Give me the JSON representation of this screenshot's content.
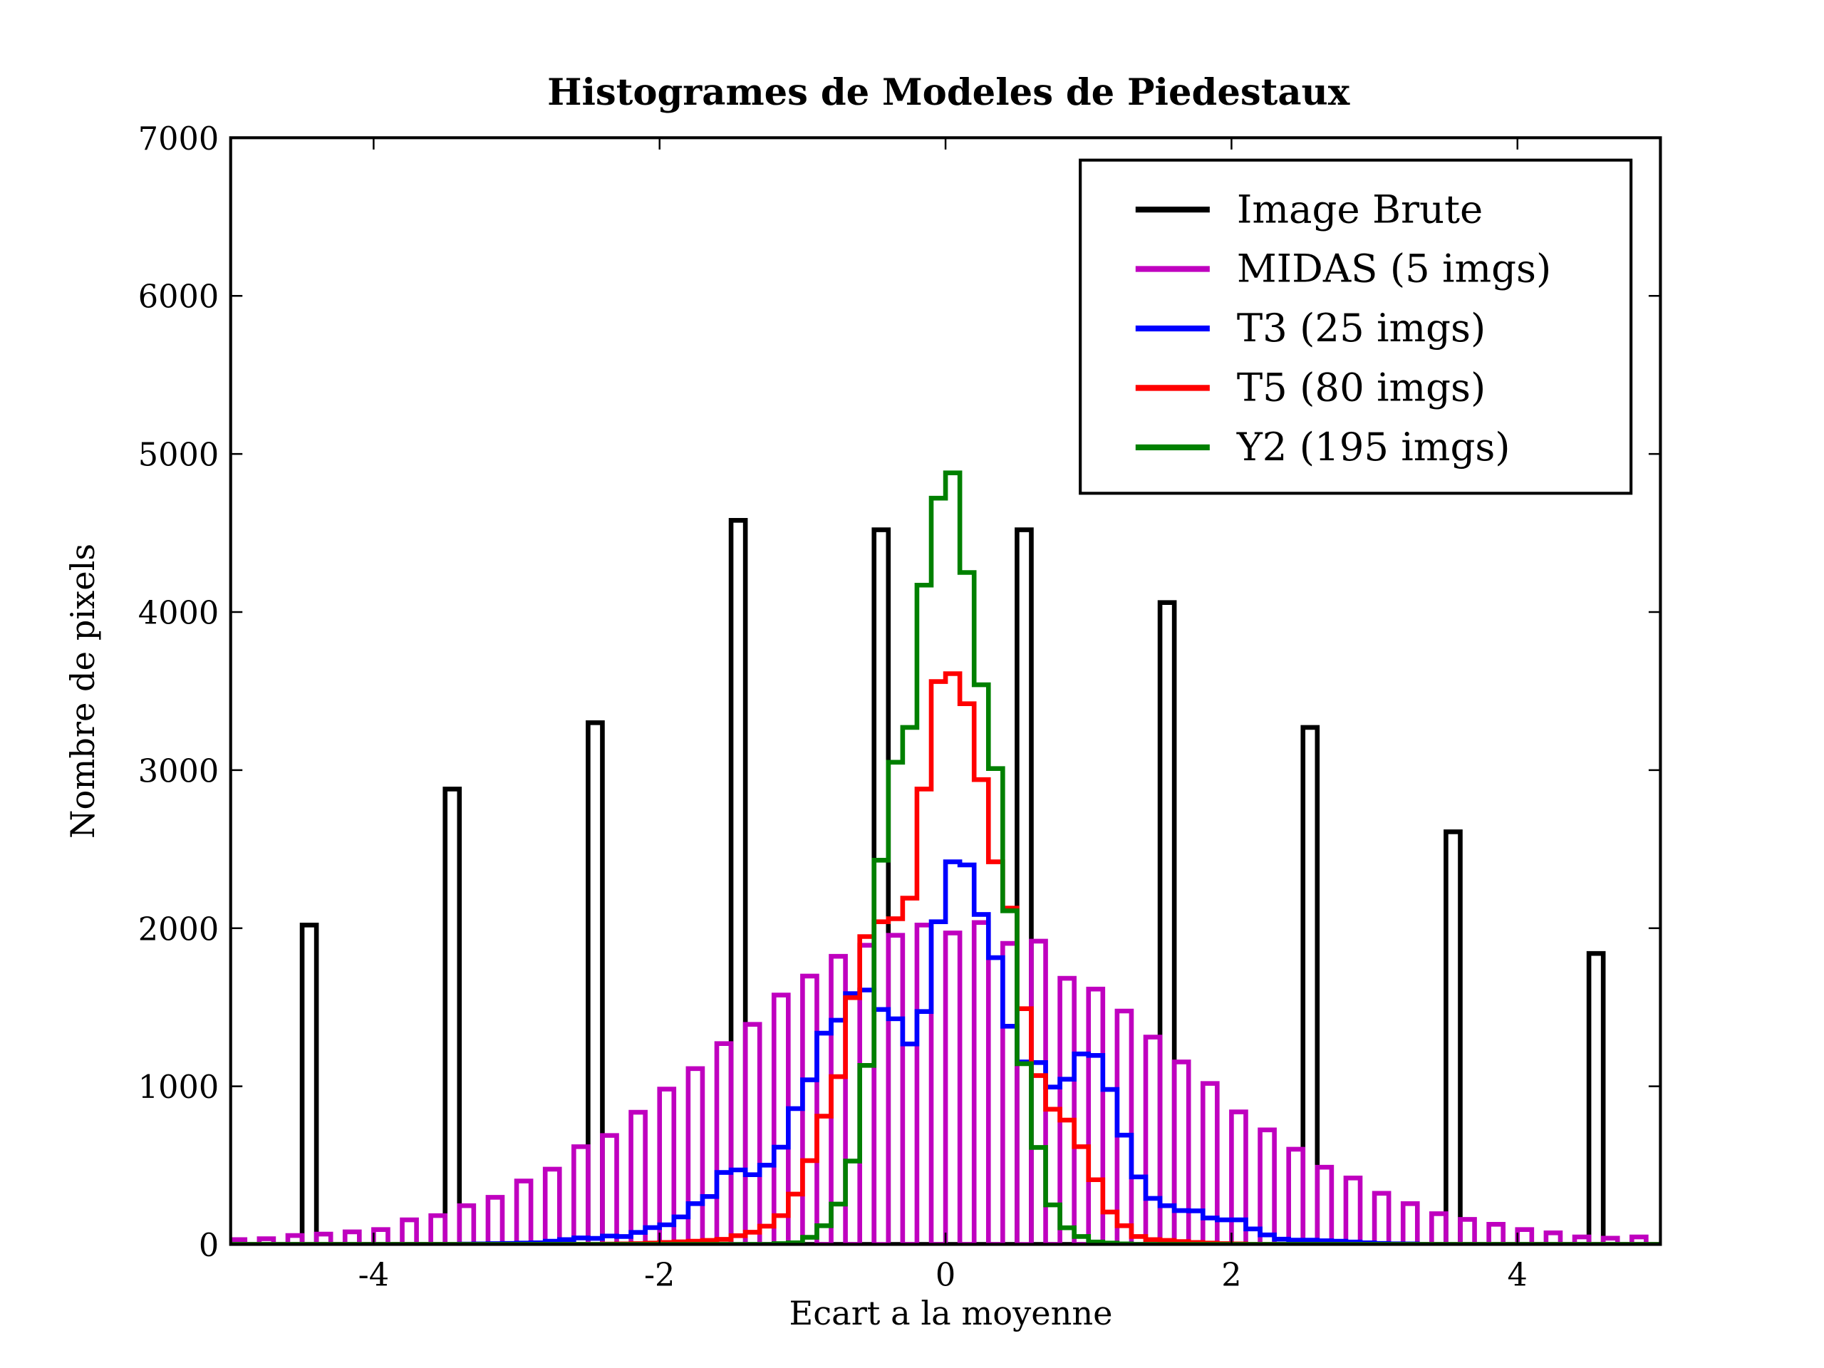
{
  "chart_data": {
    "type": "histogram-step",
    "title": "Histogrames de Modeles de Piedestaux",
    "xlabel": "Ecart a la moyenne",
    "ylabel": "Nombre de pixels",
    "xlim": [
      -5,
      5
    ],
    "ylim": [
      0,
      7000
    ],
    "x_ticks": [
      "-4",
      "-2",
      "0",
      "2",
      "4"
    ],
    "y_ticks": [
      "0",
      "1000",
      "2000",
      "3000",
      "4000",
      "5000",
      "6000",
      "7000"
    ],
    "grid": false,
    "legend_position": "top-right",
    "bin_range": [
      -5,
      5
    ],
    "bin_width": 0.1,
    "series": [
      {
        "name": "Image Brute",
        "color": "#000000",
        "counts": [
          0,
          0,
          0,
          0,
          0,
          2020,
          0,
          0,
          0,
          0,
          0,
          0,
          0,
          0,
          0,
          2880,
          0,
          0,
          0,
          0,
          0,
          0,
          0,
          0,
          0,
          3300,
          0,
          0,
          0,
          0,
          0,
          0,
          0,
          0,
          0,
          4580,
          0,
          0,
          0,
          0,
          0,
          0,
          0,
          0,
          0,
          4520,
          0,
          0,
          0,
          0,
          0,
          0,
          0,
          0,
          0,
          4520,
          0,
          0,
          0,
          0,
          0,
          0,
          0,
          0,
          0,
          4060,
          0,
          0,
          0,
          0,
          0,
          0,
          0,
          0,
          0,
          3270,
          0,
          0,
          0,
          0,
          0,
          0,
          0,
          0,
          0,
          2610,
          0,
          0,
          0,
          0,
          0,
          0,
          0,
          0,
          0,
          1840,
          0,
          0,
          0,
          0
        ]
      },
      {
        "name": "MIDAS (5 imgs)",
        "color": "#bf00bf",
        "counts": [
          30,
          0,
          36,
          0,
          56,
          0,
          65,
          0,
          79,
          0,
          94,
          0,
          155,
          0,
          182,
          0,
          245,
          0,
          298,
          0,
          401,
          0,
          476,
          0,
          618,
          0,
          689,
          0,
          836,
          0,
          982,
          0,
          1112,
          0,
          1270,
          0,
          1392,
          0,
          1577,
          0,
          1697,
          0,
          1822,
          0,
          1892,
          0,
          1955,
          0,
          2020,
          0,
          1970,
          0,
          2036,
          0,
          1904,
          0,
          1918,
          0,
          1683,
          0,
          1615,
          0,
          1476,
          0,
          1311,
          0,
          1154,
          0,
          1018,
          0,
          838,
          0,
          724,
          0,
          602,
          0,
          488,
          0,
          420,
          0,
          323,
          0,
          258,
          0,
          194,
          0,
          158,
          0,
          127,
          0,
          94,
          0,
          73,
          0,
          47,
          0,
          39,
          0,
          47,
          0
        ]
      },
      {
        "name": "T3 (25 imgs)",
        "color": "#0000ff",
        "counts": [
          0,
          0,
          0,
          0,
          0,
          0,
          0,
          0,
          0,
          0,
          0,
          0,
          0,
          0,
          0,
          0,
          2,
          3,
          5,
          6,
          8,
          10,
          20,
          30,
          41,
          38,
          53,
          50,
          76,
          106,
          124,
          174,
          258,
          303,
          455,
          471,
          441,
          501,
          615,
          859,
          1041,
          1336,
          1418,
          1586,
          1609,
          1486,
          1427,
          1268,
          1473,
          2041,
          2420,
          2400,
          2087,
          1814,
          1380,
          1154,
          1150,
          995,
          1045,
          1205,
          1195,
          980,
          691,
          427,
          291,
          245,
          214,
          212,
          167,
          155,
          155,
          98,
          60,
          33,
          27,
          27,
          23,
          20,
          15,
          10,
          6,
          4,
          3,
          0,
          0,
          0,
          0,
          0,
          0,
          0,
          0,
          0,
          0,
          0,
          0,
          0,
          0,
          0,
          0,
          0
        ]
      },
      {
        "name": "T5 (80 imgs)",
        "color": "#ff0000",
        "counts": [
          0,
          0,
          0,
          0,
          0,
          0,
          0,
          0,
          0,
          0,
          0,
          0,
          0,
          0,
          0,
          0,
          0,
          0,
          0,
          0,
          0,
          0,
          0,
          0,
          0,
          0,
          2,
          3,
          5,
          8,
          12,
          16,
          20,
          25,
          32,
          55,
          77,
          115,
          182,
          318,
          530,
          811,
          1061,
          1561,
          1947,
          2041,
          2060,
          2190,
          2880,
          3560,
          3610,
          3420,
          2940,
          2420,
          2127,
          1491,
          1068,
          855,
          786,
          618,
          409,
          205,
          118,
          50,
          30,
          25,
          18,
          12,
          8,
          5,
          3,
          0,
          0,
          0,
          0,
          0,
          0,
          0,
          0,
          0,
          0,
          0,
          0,
          0,
          0,
          0,
          0,
          0,
          0,
          0,
          0,
          0,
          0,
          0,
          0,
          0,
          0,
          0,
          0,
          0
        ]
      },
      {
        "name": "Y2 (195 imgs)",
        "color": "#008000",
        "counts": [
          0,
          0,
          0,
          0,
          0,
          0,
          0,
          0,
          0,
          0,
          0,
          0,
          0,
          0,
          0,
          0,
          0,
          0,
          0,
          0,
          0,
          0,
          0,
          0,
          0,
          0,
          0,
          0,
          0,
          0,
          0,
          0,
          0,
          0,
          0,
          0,
          0,
          0,
          5,
          10,
          45,
          118,
          255,
          527,
          1132,
          2430,
          3050,
          3270,
          4170,
          4720,
          4880,
          4250,
          3540,
          3010,
          2110,
          1143,
          613,
          250,
          105,
          50,
          15,
          8,
          3,
          0,
          0,
          0,
          0,
          0,
          0,
          0,
          0,
          0,
          0,
          0,
          0,
          0,
          0,
          0,
          0,
          0,
          0,
          0,
          0,
          0,
          0,
          0,
          0,
          0,
          0,
          0,
          0,
          0,
          0,
          0,
          0,
          0,
          0,
          0,
          0,
          0
        ]
      }
    ]
  }
}
